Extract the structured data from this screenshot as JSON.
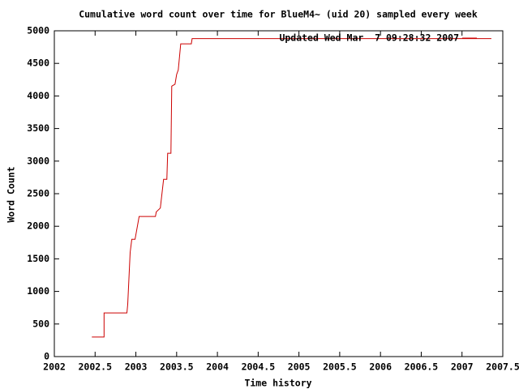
{
  "chart_data": {
    "type": "line",
    "title": "Cumulative word count over time for BlueM4~ (uid 20) sampled every week",
    "x_label": "Time history",
    "y_label": "Word Count",
    "x": [
      2002.46,
      2002.61,
      2002.61,
      2002.89,
      2002.9,
      2002.93,
      2002.95,
      2002.99,
      2003.04,
      2003.24,
      2003.25,
      2003.3,
      2003.34,
      2003.38,
      2003.39,
      2003.43,
      2003.44,
      2003.48,
      2003.5,
      2003.52,
      2003.55,
      2003.68,
      2003.69,
      2007.36
    ],
    "series": [
      {
        "name": "Updated Wed Mar  7 09:28:32 2007",
        "color": "#cc0000",
        "values": [
          300,
          300,
          670,
          670,
          800,
          1600,
          1800,
          1800,
          2150,
          2150,
          2220,
          2280,
          2720,
          2720,
          3120,
          3120,
          4150,
          4180,
          4330,
          4400,
          4800,
          4800,
          4880,
          4880
        ]
      }
    ],
    "xlim": [
      2002,
      2007.5
    ],
    "xticks": [
      2002,
      2002.5,
      2003,
      2003.5,
      2004,
      2004.5,
      2005,
      2005.5,
      2006,
      2006.5,
      2007,
      2007.5
    ],
    "ylim": [
      0,
      5000
    ],
    "yticks": [
      0,
      500,
      1000,
      1500,
      2000,
      2500,
      3000,
      3500,
      4000,
      4500,
      5000
    ],
    "legend_position": "top-right",
    "grid": false
  }
}
